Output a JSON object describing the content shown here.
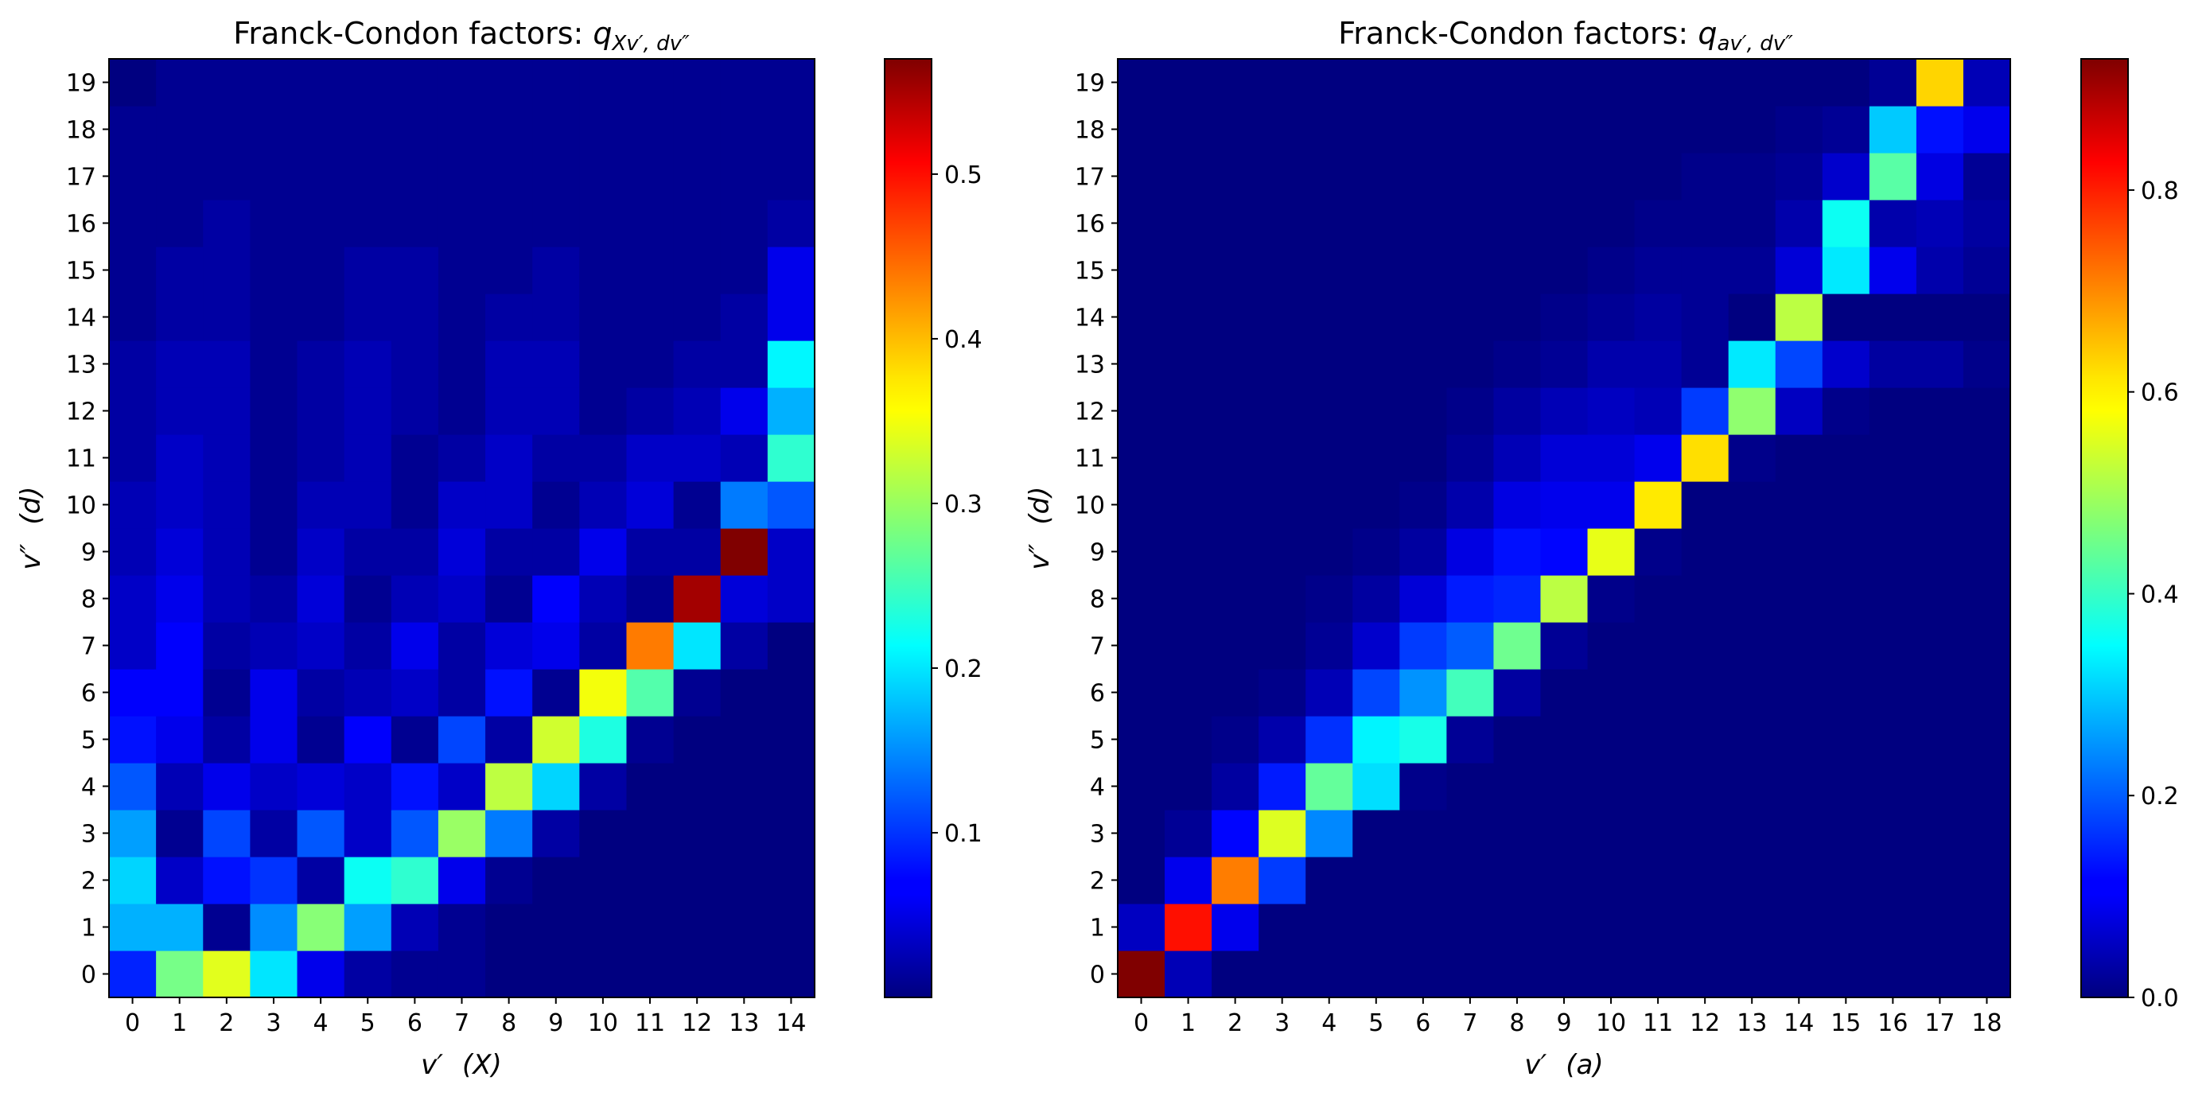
{
  "chart_data": [
    {
      "type": "heatmap",
      "title_prefix": "Franck-Condon factors: ",
      "title_math": "q",
      "title_sub": "Xv′, dv″",
      "xlabel_symbol": "v′",
      "xlabel_state": "(X)",
      "ylabel_symbol": "v″",
      "ylabel_state": "(d)",
      "x_categories": [
        "0",
        "1",
        "2",
        "3",
        "4",
        "5",
        "6",
        "7",
        "8",
        "9",
        "10",
        "11",
        "12",
        "13",
        "14"
      ],
      "y_categories": [
        "0",
        "1",
        "2",
        "3",
        "4",
        "5",
        "6",
        "7",
        "8",
        "9",
        "10",
        "11",
        "12",
        "13",
        "14",
        "15",
        "16",
        "17",
        "18",
        "19"
      ],
      "colormap": "jet",
      "vmin": 0.0,
      "vmax": 0.57,
      "colorbar_ticks": [
        0.1,
        0.2,
        0.3,
        0.4,
        0.5
      ],
      "colorbar_tick_labels": [
        "0.1",
        "0.2",
        "0.3",
        "0.4",
        "0.5"
      ],
      "values": [
        [
          0.09,
          0.28,
          0.34,
          0.2,
          0.06,
          0.02,
          0.01,
          0.01,
          0.0,
          0.0,
          0.0,
          0.0,
          0.0,
          0.0,
          0.0
        ],
        [
          0.17,
          0.17,
          0.01,
          0.15,
          0.29,
          0.16,
          0.03,
          0.01,
          0.0,
          0.0,
          0.0,
          0.0,
          0.0,
          0.0,
          0.0
        ],
        [
          0.19,
          0.04,
          0.08,
          0.1,
          0.02,
          0.22,
          0.24,
          0.06,
          0.01,
          0.0,
          0.0,
          0.0,
          0.0,
          0.0,
          0.0
        ],
        [
          0.16,
          0.01,
          0.11,
          0.02,
          0.12,
          0.04,
          0.12,
          0.3,
          0.14,
          0.02,
          0.0,
          0.0,
          0.0,
          0.0,
          0.0
        ],
        [
          0.12,
          0.03,
          0.06,
          0.04,
          0.05,
          0.04,
          0.08,
          0.04,
          0.32,
          0.19,
          0.02,
          0.0,
          0.0,
          0.0,
          0.0
        ],
        [
          0.08,
          0.06,
          0.02,
          0.06,
          0.01,
          0.07,
          0.01,
          0.11,
          0.02,
          0.33,
          0.23,
          0.01,
          0.0,
          0.0,
          0.0
        ],
        [
          0.07,
          0.07,
          0.01,
          0.06,
          0.02,
          0.03,
          0.04,
          0.02,
          0.08,
          0.01,
          0.35,
          0.26,
          0.01,
          0.0,
          0.0
        ],
        [
          0.04,
          0.07,
          0.02,
          0.03,
          0.04,
          0.02,
          0.06,
          0.02,
          0.05,
          0.06,
          0.02,
          0.43,
          0.2,
          0.02,
          0.0
        ],
        [
          0.04,
          0.06,
          0.03,
          0.02,
          0.05,
          0.01,
          0.03,
          0.04,
          0.01,
          0.07,
          0.03,
          0.01,
          0.55,
          0.05,
          0.04
        ],
        [
          0.03,
          0.05,
          0.03,
          0.01,
          0.04,
          0.02,
          0.02,
          0.05,
          0.02,
          0.02,
          0.06,
          0.02,
          0.02,
          0.57,
          0.04
        ],
        [
          0.03,
          0.04,
          0.03,
          0.01,
          0.03,
          0.03,
          0.01,
          0.04,
          0.04,
          0.01,
          0.03,
          0.05,
          0.01,
          0.14,
          0.12
        ],
        [
          0.02,
          0.04,
          0.03,
          0.01,
          0.02,
          0.03,
          0.01,
          0.02,
          0.04,
          0.02,
          0.02,
          0.04,
          0.04,
          0.03,
          0.24
        ],
        [
          0.02,
          0.03,
          0.03,
          0.01,
          0.02,
          0.03,
          0.02,
          0.01,
          0.03,
          0.03,
          0.01,
          0.02,
          0.03,
          0.06,
          0.17
        ],
        [
          0.02,
          0.03,
          0.03,
          0.01,
          0.02,
          0.03,
          0.02,
          0.01,
          0.03,
          0.03,
          0.01,
          0.01,
          0.02,
          0.02,
          0.21
        ],
        [
          0.01,
          0.02,
          0.02,
          0.01,
          0.01,
          0.02,
          0.02,
          0.01,
          0.02,
          0.02,
          0.01,
          0.01,
          0.01,
          0.02,
          0.06
        ],
        [
          0.01,
          0.02,
          0.02,
          0.01,
          0.01,
          0.02,
          0.02,
          0.01,
          0.01,
          0.02,
          0.01,
          0.01,
          0.01,
          0.01,
          0.06
        ],
        [
          0.01,
          0.01,
          0.02,
          0.01,
          0.01,
          0.01,
          0.01,
          0.01,
          0.01,
          0.01,
          0.01,
          0.01,
          0.01,
          0.01,
          0.02
        ],
        [
          0.01,
          0.01,
          0.01,
          0.01,
          0.01,
          0.01,
          0.01,
          0.01,
          0.01,
          0.01,
          0.01,
          0.01,
          0.01,
          0.01,
          0.01
        ],
        [
          0.01,
          0.01,
          0.01,
          0.01,
          0.01,
          0.01,
          0.01,
          0.01,
          0.01,
          0.01,
          0.01,
          0.01,
          0.01,
          0.01,
          0.01
        ],
        [
          0.0,
          0.01,
          0.01,
          0.01,
          0.01,
          0.01,
          0.01,
          0.01,
          0.01,
          0.01,
          0.01,
          0.01,
          0.01,
          0.01,
          0.01
        ]
      ]
    },
    {
      "type": "heatmap",
      "title_prefix": "Franck-Condon factors: ",
      "title_math": "q",
      "title_sub": "av′, dv″",
      "xlabel_symbol": "v′",
      "xlabel_state": "(a)",
      "ylabel_symbol": "v″",
      "ylabel_state": "(d)",
      "x_categories": [
        "0",
        "1",
        "2",
        "3",
        "4",
        "5",
        "6",
        "7",
        "8",
        "9",
        "10",
        "11",
        "12",
        "13",
        "14",
        "15",
        "16",
        "17",
        "18"
      ],
      "y_categories": [
        "0",
        "1",
        "2",
        "3",
        "4",
        "5",
        "6",
        "7",
        "8",
        "9",
        "10",
        "11",
        "12",
        "13",
        "14",
        "15",
        "16",
        "17",
        "18",
        "19"
      ],
      "colormap": "jet",
      "vmin": 0.0,
      "vmax": 0.93,
      "colorbar_ticks": [
        0.0,
        0.2,
        0.4,
        0.6,
        0.8
      ],
      "colorbar_tick_labels": [
        "0.0",
        "0.2",
        "0.4",
        "0.6",
        "0.8"
      ],
      "values": [
        [
          0.93,
          0.05,
          0.0,
          0.0,
          0.0,
          0.0,
          0.0,
          0.0,
          0.0,
          0.0,
          0.0,
          0.0,
          0.0,
          0.0,
          0.0,
          0.0,
          0.0,
          0.0,
          0.0
        ],
        [
          0.06,
          0.8,
          0.1,
          0.0,
          0.0,
          0.0,
          0.0,
          0.0,
          0.0,
          0.0,
          0.0,
          0.0,
          0.0,
          0.0,
          0.0,
          0.0,
          0.0,
          0.0,
          0.0
        ],
        [
          0.0,
          0.1,
          0.7,
          0.17,
          0.0,
          0.0,
          0.0,
          0.0,
          0.0,
          0.0,
          0.0,
          0.0,
          0.0,
          0.0,
          0.0,
          0.0,
          0.0,
          0.0,
          0.0
        ],
        [
          0.0,
          0.02,
          0.12,
          0.55,
          0.24,
          0.0,
          0.0,
          0.0,
          0.0,
          0.0,
          0.0,
          0.0,
          0.0,
          0.0,
          0.0,
          0.0,
          0.0,
          0.0,
          0.0
        ],
        [
          0.0,
          0.0,
          0.03,
          0.14,
          0.44,
          0.32,
          0.01,
          0.0,
          0.0,
          0.0,
          0.0,
          0.0,
          0.0,
          0.0,
          0.0,
          0.0,
          0.0,
          0.0,
          0.0
        ],
        [
          0.0,
          0.0,
          0.01,
          0.04,
          0.16,
          0.34,
          0.37,
          0.02,
          0.0,
          0.0,
          0.0,
          0.0,
          0.0,
          0.0,
          0.0,
          0.0,
          0.0,
          0.0,
          0.0
        ],
        [
          0.0,
          0.0,
          0.0,
          0.01,
          0.05,
          0.18,
          0.25,
          0.41,
          0.03,
          0.0,
          0.0,
          0.0,
          0.0,
          0.0,
          0.0,
          0.0,
          0.0,
          0.0,
          0.0
        ],
        [
          0.0,
          0.0,
          0.0,
          0.0,
          0.02,
          0.07,
          0.17,
          0.2,
          0.45,
          0.02,
          0.0,
          0.0,
          0.0,
          0.0,
          0.0,
          0.0,
          0.0,
          0.0,
          0.0
        ],
        [
          0.0,
          0.0,
          0.0,
          0.0,
          0.01,
          0.03,
          0.08,
          0.14,
          0.15,
          0.52,
          0.01,
          0.0,
          0.0,
          0.0,
          0.0,
          0.0,
          0.0,
          0.0,
          0.0
        ],
        [
          0.0,
          0.0,
          0.0,
          0.0,
          0.0,
          0.01,
          0.03,
          0.09,
          0.13,
          0.12,
          0.56,
          0.01,
          0.0,
          0.0,
          0.0,
          0.0,
          0.0,
          0.0,
          0.0
        ],
        [
          0.0,
          0.0,
          0.0,
          0.0,
          0.0,
          0.0,
          0.01,
          0.04,
          0.09,
          0.1,
          0.1,
          0.6,
          0.0,
          0.0,
          0.0,
          0.0,
          0.0,
          0.0,
          0.0
        ],
        [
          0.0,
          0.0,
          0.0,
          0.0,
          0.0,
          0.0,
          0.0,
          0.02,
          0.05,
          0.08,
          0.08,
          0.1,
          0.61,
          0.01,
          0.0,
          0.0,
          0.0,
          0.0,
          0.0
        ],
        [
          0.0,
          0.0,
          0.0,
          0.0,
          0.0,
          0.0,
          0.0,
          0.01,
          0.03,
          0.05,
          0.06,
          0.05,
          0.17,
          0.48,
          0.06,
          0.01,
          0.0,
          0.0,
          0.0
        ],
        [
          0.0,
          0.0,
          0.0,
          0.0,
          0.0,
          0.0,
          0.0,
          0.0,
          0.01,
          0.02,
          0.04,
          0.04,
          0.02,
          0.33,
          0.18,
          0.07,
          0.03,
          0.03,
          0.01
        ],
        [
          0.0,
          0.0,
          0.0,
          0.0,
          0.0,
          0.0,
          0.0,
          0.0,
          0.0,
          0.01,
          0.02,
          0.03,
          0.02,
          0.0,
          0.52,
          0.0,
          0.0,
          0.0,
          0.0
        ],
        [
          0.0,
          0.0,
          0.0,
          0.0,
          0.0,
          0.0,
          0.0,
          0.0,
          0.0,
          0.0,
          0.01,
          0.02,
          0.02,
          0.02,
          0.08,
          0.33,
          0.1,
          0.04,
          0.02
        ],
        [
          0.0,
          0.0,
          0.0,
          0.0,
          0.0,
          0.0,
          0.0,
          0.0,
          0.0,
          0.0,
          0.0,
          0.01,
          0.01,
          0.01,
          0.04,
          0.36,
          0.04,
          0.05,
          0.03
        ],
        [
          0.0,
          0.0,
          0.0,
          0.0,
          0.0,
          0.0,
          0.0,
          0.0,
          0.0,
          0.0,
          0.0,
          0.0,
          0.01,
          0.01,
          0.02,
          0.07,
          0.43,
          0.09,
          0.02
        ],
        [
          0.0,
          0.0,
          0.0,
          0.0,
          0.0,
          0.0,
          0.0,
          0.0,
          0.0,
          0.0,
          0.0,
          0.0,
          0.0,
          0.0,
          0.01,
          0.02,
          0.3,
          0.13,
          0.1
        ],
        [
          0.0,
          0.0,
          0.0,
          0.0,
          0.0,
          0.0,
          0.0,
          0.0,
          0.0,
          0.0,
          0.0,
          0.0,
          0.0,
          0.0,
          0.0,
          0.0,
          0.02,
          0.62,
          0.05
        ]
      ]
    }
  ]
}
